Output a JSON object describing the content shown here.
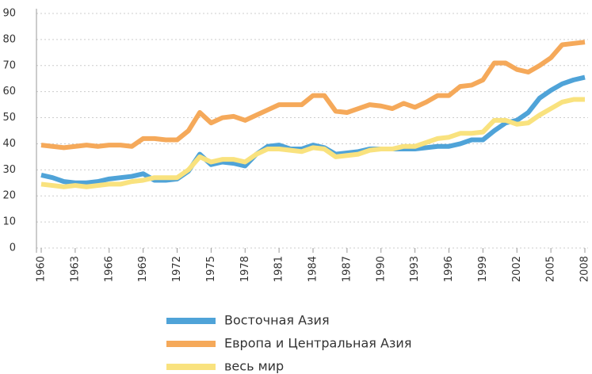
{
  "chart_data": {
    "type": "line",
    "x": [
      1960,
      1961,
      1962,
      1963,
      1964,
      1965,
      1966,
      1967,
      1968,
      1969,
      1970,
      1971,
      1972,
      1973,
      1974,
      1975,
      1976,
      1977,
      1978,
      1979,
      1980,
      1981,
      1982,
      1983,
      1984,
      1985,
      1986,
      1987,
      1988,
      1989,
      1990,
      1991,
      1992,
      1993,
      1994,
      1995,
      1996,
      1997,
      1998,
      1999,
      2000,
      2001,
      2002,
      2003,
      2004,
      2005,
      2006,
      2007,
      2008
    ],
    "xlim": [
      1960,
      2008
    ],
    "xticks": [
      1960,
      1963,
      1966,
      1969,
      1972,
      1975,
      1978,
      1981,
      1984,
      1987,
      1990,
      1993,
      1996,
      1999,
      2002,
      2005,
      2008
    ],
    "ylim": [
      0,
      90
    ],
    "yticks": [
      0,
      10,
      20,
      30,
      40,
      50,
      60,
      70,
      80,
      90
    ],
    "grid": true,
    "legend": "bottom",
    "series": [
      {
        "name": "Восточная Азия",
        "color": "#4fa3d8",
        "values": [
          28,
          27,
          25.5,
          25,
          25,
          25.5,
          26.5,
          27,
          27.5,
          28.5,
          26,
          26,
          26.5,
          29.5,
          36,
          32,
          33,
          32.5,
          31.5,
          36,
          39,
          39.5,
          38,
          38,
          39.5,
          38.5,
          36,
          36.5,
          37,
          38,
          38,
          38,
          38,
          38,
          38.5,
          39,
          39,
          40,
          41.5,
          41.5,
          45,
          48,
          49,
          52,
          57.5,
          60.5,
          63,
          64.5,
          65.5
        ]
      },
      {
        "name": "Европа и Центральная Азия",
        "color": "#f5a95a",
        "values": [
          39.5,
          39,
          38.5,
          39,
          39.5,
          39,
          39.5,
          39.5,
          39,
          42,
          42,
          41.5,
          41.5,
          45,
          52,
          48,
          50,
          50.5,
          49,
          51,
          53,
          55,
          55,
          55,
          58.5,
          58.5,
          52.5,
          52,
          53.5,
          55,
          54.5,
          53.5,
          55.5,
          54,
          56,
          58.5,
          58.5,
          62,
          62.5,
          64.5,
          71,
          71,
          68.5,
          67.5,
          70,
          73,
          78,
          78.5,
          79
        ]
      },
      {
        "name": "весь мир",
        "color": "#f9e27e",
        "values": [
          24.5,
          24,
          23.5,
          24,
          23.5,
          24,
          24.5,
          24.5,
          25.5,
          26,
          27,
          27,
          27,
          30,
          35,
          33,
          34,
          34,
          33,
          36,
          38,
          38,
          37.5,
          37,
          38.5,
          38,
          35,
          35.5,
          36,
          37.5,
          38,
          38,
          39,
          39,
          40.5,
          42,
          42.5,
          44,
          44,
          44.5,
          49,
          49,
          47.5,
          48,
          51,
          53.5,
          56,
          57,
          57
        ]
      }
    ]
  }
}
